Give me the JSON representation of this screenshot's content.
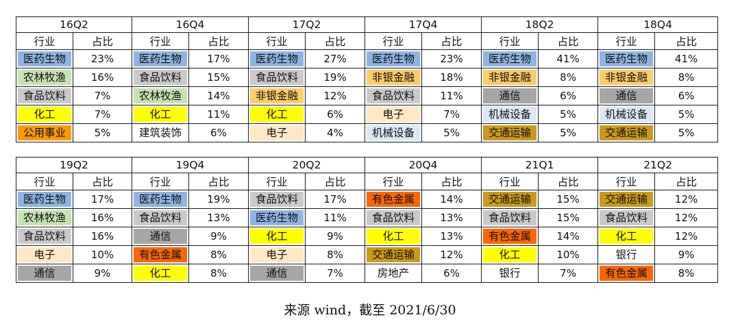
{
  "colors": {
    "医药生物": "#8eb4e3",
    "农林牧渔": "#c4e3b0",
    "食品饮料": "#c9c9c9",
    "化工": "#ffff00",
    "公用事业": "#ff9900",
    "非银金融": "#ffcc66",
    "电子": "#ffe9c4",
    "机械设备": "#dbe8f5",
    "通信": "#a6a6a6",
    "交通运输": "#cc9a1a",
    "有色金属": "#ff6600",
    "建筑装饰": "#ffffff",
    "银行": "#ffffff",
    "房地产": "#ffffff"
  },
  "groups": [
    {
      "periods": [
        {
          "label": "16Q2",
          "header": [
            "行业",
            "占比"
          ],
          "rows": [
            {
              "industry": "医药生物",
              "share": "23%"
            },
            {
              "industry": "农林牧渔",
              "share": "16%"
            },
            {
              "industry": "食品饮料",
              "share": "7%"
            },
            {
              "industry": "化工",
              "share": "7%"
            },
            {
              "industry": "公用事业",
              "share": "5%"
            }
          ]
        },
        {
          "label": "16Q4",
          "header": [
            "行业",
            "占比"
          ],
          "rows": [
            {
              "industry": "医药生物",
              "share": "17%"
            },
            {
              "industry": "食品饮料",
              "share": "15%"
            },
            {
              "industry": "农林牧渔",
              "share": "14%"
            },
            {
              "industry": "化工",
              "share": "11%"
            },
            {
              "industry": "建筑装饰",
              "share": "6%"
            }
          ]
        },
        {
          "label": "17Q2",
          "header": [
            "行业",
            "占比"
          ],
          "rows": [
            {
              "industry": "医药生物",
              "share": "27%"
            },
            {
              "industry": "食品饮料",
              "share": "19%"
            },
            {
              "industry": "非银金融",
              "share": "12%"
            },
            {
              "industry": "化工",
              "share": "6%"
            },
            {
              "industry": "电子",
              "share": "4%"
            }
          ]
        },
        {
          "label": "17Q4",
          "header": [
            "行业",
            "占比"
          ],
          "rows": [
            {
              "industry": "医药生物",
              "share": "23%"
            },
            {
              "industry": "非银金融",
              "share": "18%"
            },
            {
              "industry": "食品饮料",
              "share": "11%"
            },
            {
              "industry": "电子",
              "share": "7%"
            },
            {
              "industry": "机械设备",
              "share": "5%"
            }
          ]
        },
        {
          "label": "18Q2",
          "header": [
            "行业",
            "占比"
          ],
          "rows": [
            {
              "industry": "医药生物",
              "share": "41%"
            },
            {
              "industry": "非银金融",
              "share": "8%"
            },
            {
              "industry": "通信",
              "share": "6%"
            },
            {
              "industry": "机械设备",
              "share": "5%"
            },
            {
              "industry": "交通运输",
              "share": "5%"
            }
          ]
        },
        {
          "label": "18Q4",
          "header": [
            "行业",
            "占比"
          ],
          "rows": [
            {
              "industry": "医药生物",
              "share": "41%"
            },
            {
              "industry": "非银金融",
              "share": "8%"
            },
            {
              "industry": "通信",
              "share": "6%"
            },
            {
              "industry": "机械设备",
              "share": "5%"
            },
            {
              "industry": "交通运输",
              "share": "5%"
            }
          ]
        }
      ]
    },
    {
      "periods": [
        {
          "label": "19Q2",
          "header": [
            "行业",
            "占比"
          ],
          "rows": [
            {
              "industry": "医药生物",
              "share": "17%"
            },
            {
              "industry": "农林牧渔",
              "share": "16%"
            },
            {
              "industry": "食品饮料",
              "share": "16%"
            },
            {
              "industry": "电子",
              "share": "10%"
            },
            {
              "industry": "通信",
              "share": "9%"
            }
          ]
        },
        {
          "label": "19Q4",
          "header": [
            "行业",
            "占比"
          ],
          "rows": [
            {
              "industry": "医药生物",
              "share": "19%"
            },
            {
              "industry": "食品饮料",
              "share": "13%"
            },
            {
              "industry": "通信",
              "share": "9%"
            },
            {
              "industry": "有色金属",
              "share": "8%"
            },
            {
              "industry": "化工",
              "share": "8%"
            }
          ]
        },
        {
          "label": "20Q2",
          "header": [
            "行业",
            "占比"
          ],
          "rows": [
            {
              "industry": "食品饮料",
              "share": "17%"
            },
            {
              "industry": "医药生物",
              "share": "11%"
            },
            {
              "industry": "化工",
              "share": "9%"
            },
            {
              "industry": "电子",
              "share": "8%"
            },
            {
              "industry": "通信",
              "share": "7%"
            }
          ]
        },
        {
          "label": "20Q4",
          "header": [
            "行业",
            "占比"
          ],
          "rows": [
            {
              "industry": "有色金属",
              "share": "14%"
            },
            {
              "industry": "食品饮料",
              "share": "13%"
            },
            {
              "industry": "化工",
              "share": "13%"
            },
            {
              "industry": "交通运输",
              "share": "12%"
            },
            {
              "industry": "房地产",
              "share": "6%"
            }
          ]
        },
        {
          "label": "21Q1",
          "header": [
            "行业",
            "占比"
          ],
          "rows": [
            {
              "industry": "交通运输",
              "share": "15%"
            },
            {
              "industry": "食品饮料",
              "share": "15%"
            },
            {
              "industry": "有色金属",
              "share": "14%"
            },
            {
              "industry": "化工",
              "share": "10%"
            },
            {
              "industry": "银行",
              "share": "7%"
            }
          ]
        },
        {
          "label": "21Q2",
          "header": [
            "行业",
            "占比"
          ],
          "rows": [
            {
              "industry": "交通运输",
              "share": "12%"
            },
            {
              "industry": "食品饮料",
              "share": "12%"
            },
            {
              "industry": "化工",
              "share": "12%"
            },
            {
              "industry": "银行",
              "share": "9%"
            },
            {
              "industry": "有色金属",
              "share": "8%"
            }
          ]
        }
      ]
    }
  ],
  "source_note": "来源 wind，截至 2021/6/30"
}
